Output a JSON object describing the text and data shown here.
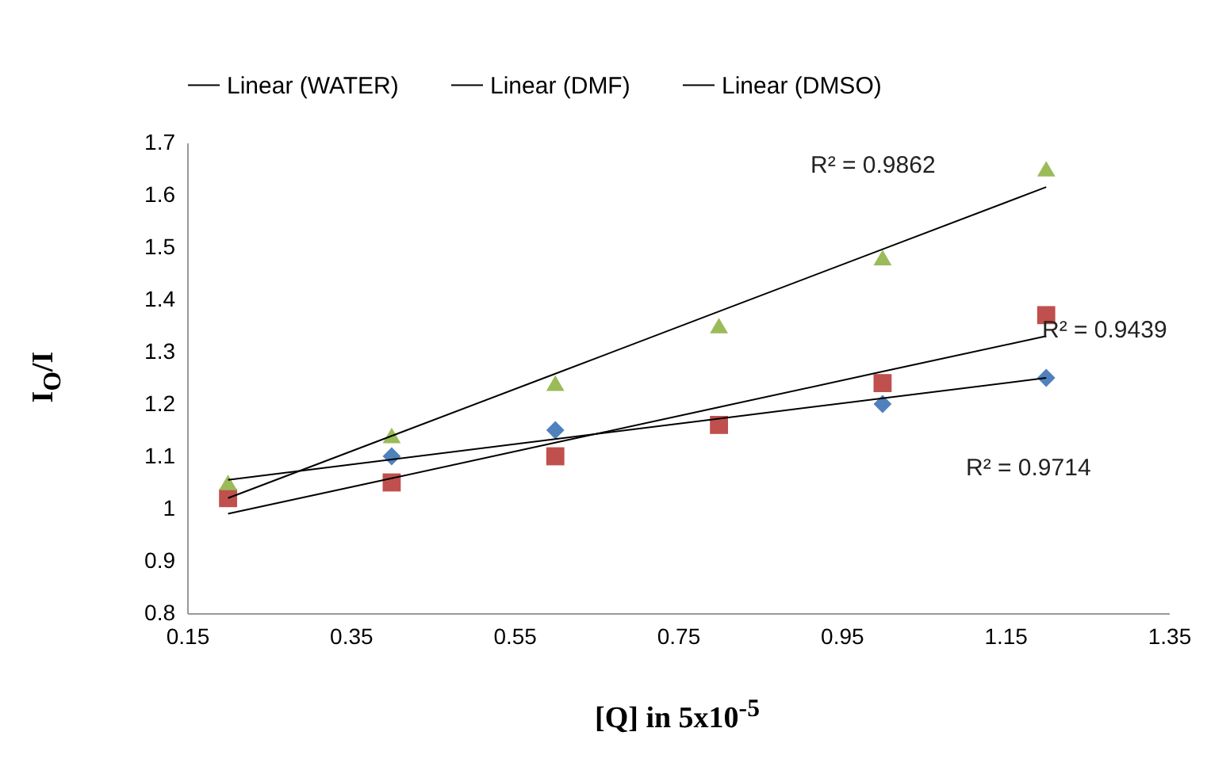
{
  "chart_data": {
    "type": "scatter",
    "xlabel": "[Q] in 5x10$^{-5}$",
    "ylabel": "I$_{O}$/I",
    "x": [
      0.2,
      0.4,
      0.6,
      0.8,
      1.0,
      1.2
    ],
    "series": [
      {
        "color": "#4f81bd",
        "marker": "diamond",
        "values": [
          null,
          1.1,
          1.15,
          null,
          1.2,
          1.25
        ]
      },
      {
        "color": "#c0504d",
        "marker": "square",
        "values": [
          1.02,
          1.05,
          1.1,
          1.16,
          1.24,
          1.37
        ]
      },
      {
        "color": "#9bbb59",
        "marker": "triangle",
        "values": [
          1.05,
          1.14,
          1.24,
          1.35,
          1.48,
          1.65
        ]
      },
      {
        "type": "line",
        "name": "Linear (WATER)",
        "color": "#000000",
        "values": [
          1.055,
          1.094,
          1.133,
          1.172,
          1.211,
          1.25
        ]
      },
      {
        "type": "line",
        "name": "Linear (DMF)",
        "color": "#000000",
        "values": [
          0.99,
          1.058,
          1.126,
          1.194,
          1.262,
          1.33
        ]
      },
      {
        "type": "line",
        "name": "Linear (DMSO)",
        "color": "#000000",
        "values": [
          1.02,
          1.139,
          1.258,
          1.377,
          1.496,
          1.615
        ]
      }
    ],
    "annotations": [
      "R² = 0.9862",
      "R² = 0.9439",
      "R² = 0.9714"
    ],
    "xlim": [
      0.15,
      1.35
    ],
    "xticks": [
      0.15,
      0.35,
      0.55,
      0.75,
      0.95,
      1.15,
      1.35
    ],
    "ylim": [
      0.8,
      1.7
    ],
    "yticks": [
      0.8,
      0.9,
      1,
      1.1,
      1.2,
      1.3,
      1.4,
      1.5,
      1.6,
      1.7
    ],
    "grid": false,
    "legend": "top"
  }
}
